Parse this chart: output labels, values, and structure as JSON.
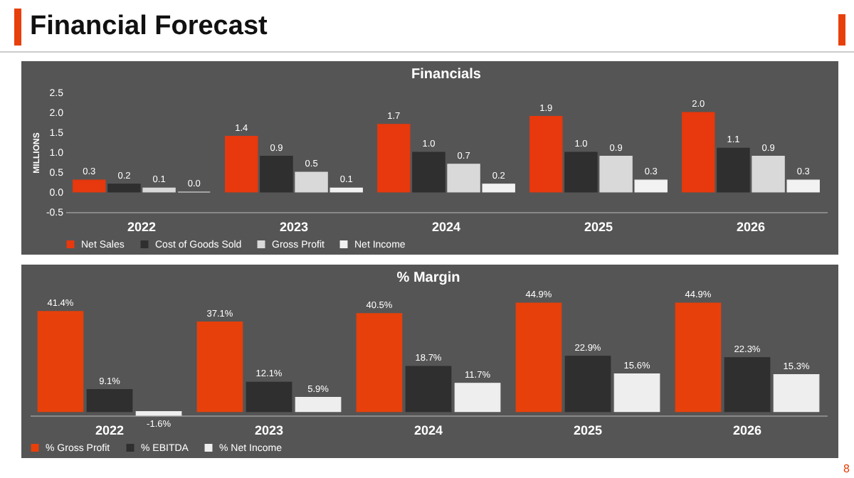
{
  "chart_data": [
    {
      "type": "bar",
      "title": "Financials",
      "ylabel": "MILLIONS",
      "categories": [
        "2022",
        "2023",
        "2024",
        "2025",
        "2026"
      ],
      "series": [
        {
          "name": "Net Sales",
          "color": "#e8380d",
          "values": [
            0.3,
            1.4,
            1.7,
            1.9,
            2.0
          ],
          "value_labels": [
            "0.3",
            "1.4",
            "1.7",
            "1.9",
            "2.0"
          ]
        },
        {
          "name": "Cost of Goods Sold",
          "color": "#2f2f2f",
          "values": [
            0.2,
            0.9,
            1.0,
            1.0,
            1.1
          ],
          "value_labels": [
            "0.2",
            "0.9",
            "1.0",
            "1.0",
            "1.1"
          ]
        },
        {
          "name": "Gross Profit",
          "color": "#d9d9d9",
          "values": [
            0.1,
            0.5,
            0.7,
            0.9,
            0.9
          ],
          "value_labels": [
            "0.1",
            "0.5",
            "0.7",
            "0.9",
            "0.9"
          ]
        },
        {
          "name": "Net Income",
          "color": "#f2f2f2",
          "values": [
            0.0,
            0.1,
            0.2,
            0.3,
            0.3
          ],
          "value_labels": [
            "0.0",
            "0.1",
            "0.2",
            "0.3",
            "0.3"
          ]
        }
      ],
      "ylim": [
        -0.5,
        2.5
      ],
      "yticks": [
        {
          "value": -0.5,
          "label": "-0.5"
        },
        {
          "value": 0,
          "label": "0.0"
        },
        {
          "value": 0.5,
          "label": "0.5"
        },
        {
          "value": 1,
          "label": "1.0"
        },
        {
          "value": 1.5,
          "label": "1.5"
        },
        {
          "value": 2,
          "label": "2.0"
        },
        {
          "value": 2.5,
          "label": "2.5"
        }
      ],
      "legend": "bottom",
      "annotations": [
        "Financial Forecast"
      ]
    },
    {
      "type": "bar",
      "title": "% Margin",
      "categories": [
        "2022",
        "2023",
        "2024",
        "2025",
        "2026"
      ],
      "series": [
        {
          "name": "% Gross Profit",
          "color": "#e8400a",
          "values": [
            41.4,
            37.1,
            40.5,
            44.9,
            44.9
          ],
          "value_labels": [
            "41.4%",
            "37.1%",
            "40.5%",
            "44.9%",
            "44.9%"
          ]
        },
        {
          "name": "% EBITDA",
          "color": "#2f2f2f",
          "values": [
            9.1,
            12.1,
            18.7,
            22.9,
            22.3
          ],
          "value_labels": [
            "9.1%",
            "12.1%",
            "18.7%",
            "22.9%",
            "22.3%"
          ]
        },
        {
          "name": "% Net Income",
          "color": "#eeeeee",
          "values": [
            -1.6,
            5.9,
            11.7,
            15.6,
            15.3
          ],
          "value_labels": [
            "-1.6%",
            "5.9%",
            "11.7%",
            "15.6%",
            "15.3%"
          ]
        }
      ],
      "tick_labels": "x",
      "legend": "bottom",
      "annotations": [
        "8"
      ]
    }
  ]
}
